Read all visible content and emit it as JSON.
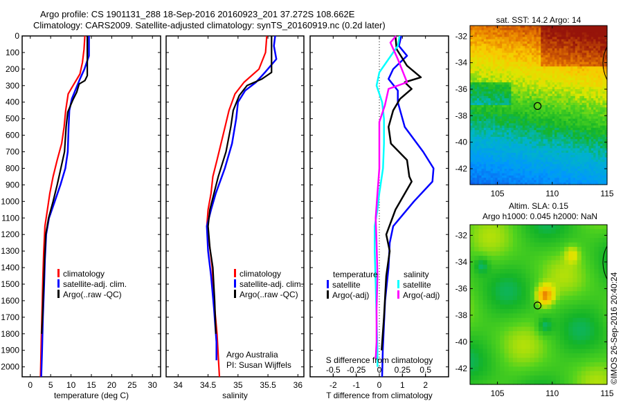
{
  "header": {
    "line1": "Argo profile: CS 1901131_288 18-Sep-2016 20160923_201 37.272S 108.662E",
    "line2": "Climatology: CARS2009. Satellite-adjusted climatology: synTS_20160919.nc (0.2d later)"
  },
  "credit": "©IMOS 26-Sep-2016 20:40:24",
  "colors": {
    "climatology": "#ff0000",
    "satellite": "#0000ff",
    "argo": "#000000",
    "sal_satellite": "#00ffff",
    "sal_argo": "#ff00ff"
  },
  "chart_data": [
    {
      "type": "line",
      "name": "temperature-profile",
      "xlabel": "temperature (deg C)",
      "ylabel": "",
      "xlim": [
        -2,
        32
      ],
      "ylim": [
        2060,
        0
      ],
      "xticks": [
        0,
        5,
        10,
        15,
        20,
        25,
        30
      ],
      "yticks": [
        0,
        100,
        200,
        300,
        400,
        500,
        600,
        700,
        800,
        900,
        1000,
        1100,
        1200,
        1300,
        1400,
        1500,
        1600,
        1700,
        1800,
        1900,
        2000
      ],
      "legend": [
        "climatology",
        "satellite-adj. clim.",
        "Argo(..raw -QC)"
      ],
      "series": [
        {
          "name": "climatology",
          "color": "#ff0000",
          "points": [
            [
              13.4,
              0
            ],
            [
              13.2,
              80
            ],
            [
              12.8,
              160
            ],
            [
              12.2,
              230
            ],
            [
              10.5,
              300
            ],
            [
              9.3,
              350
            ],
            [
              8.7,
              450
            ],
            [
              8.3,
              550
            ],
            [
              7.7,
              650
            ],
            [
              6.6,
              750
            ],
            [
              5.6,
              850
            ],
            [
              4.8,
              950
            ],
            [
              4.2,
              1050
            ],
            [
              3.6,
              1150
            ],
            [
              3.3,
              1300
            ],
            [
              3.1,
              1450
            ],
            [
              2.9,
              1650
            ],
            [
              2.7,
              1850
            ],
            [
              2.5,
              2060
            ]
          ]
        },
        {
          "name": "satellite-adj. clim.",
          "color": "#0000ff",
          "points": [
            [
              14.4,
              0
            ],
            [
              14.4,
              120
            ],
            [
              13.3,
              200
            ],
            [
              12.2,
              260
            ],
            [
              11.2,
              320
            ],
            [
              10.2,
              380
            ],
            [
              9.6,
              450
            ],
            [
              9.4,
              550
            ],
            [
              9.2,
              700
            ],
            [
              8.6,
              800
            ],
            [
              7.4,
              900
            ],
            [
              6.0,
              1000
            ],
            [
              4.6,
              1100
            ],
            [
              3.9,
              1200
            ],
            [
              3.6,
              1350
            ],
            [
              3.4,
              1500
            ],
            [
              3.1,
              1700
            ],
            [
              2.9,
              1900
            ],
            [
              2.7,
              2060
            ]
          ]
        },
        {
          "name": "Argo(..raw -QC)",
          "color": "#000000",
          "points": [
            [
              14.0,
              0
            ],
            [
              14.0,
              100
            ],
            [
              14.0,
              240
            ],
            [
              13.4,
              270
            ],
            [
              12.0,
              290
            ],
            [
              11.4,
              340
            ],
            [
              10.4,
              390
            ],
            [
              9.2,
              460
            ],
            [
              8.8,
              550
            ],
            [
              8.4,
              700
            ],
            [
              7.5,
              800
            ],
            [
              6.6,
              900
            ],
            [
              5.6,
              1000
            ],
            [
              4.5,
              1100
            ],
            [
              3.8,
              1200
            ],
            [
              3.5,
              1350
            ],
            [
              3.2,
              1550
            ],
            [
              3.0,
              1700
            ],
            [
              2.8,
              1800
            ]
          ]
        }
      ]
    },
    {
      "type": "line",
      "name": "salinity-profile",
      "xlabel": "salinity",
      "xlim": [
        33.8,
        36.1
      ],
      "ylim": [
        2060,
        0
      ],
      "xticks": [
        34,
        34.5,
        35,
        35.5,
        36
      ],
      "tick_labels": [
        "34",
        "34.5",
        "35",
        "35.5",
        "36"
      ],
      "legend": [
        "climatology",
        "satellite-adj. clim.",
        "Argo(..raw -QC)"
      ],
      "annotation": [
        "Argo Australia",
        "PI: Susan Wijffels"
      ],
      "series": [
        {
          "name": "climatology",
          "color": "#ff0000",
          "points": [
            [
              35.48,
              0
            ],
            [
              35.46,
              100
            ],
            [
              35.35,
              200
            ],
            [
              35.1,
              280
            ],
            [
              34.95,
              350
            ],
            [
              34.85,
              450
            ],
            [
              34.75,
              600
            ],
            [
              34.65,
              750
            ],
            [
              34.58,
              850
            ],
            [
              34.55,
              950
            ],
            [
              34.5,
              1050
            ],
            [
              34.48,
              1150
            ],
            [
              34.52,
              1250
            ],
            [
              34.57,
              1400
            ],
            [
              34.6,
              1600
            ],
            [
              34.65,
              1800
            ],
            [
              34.69,
              2060
            ]
          ]
        },
        {
          "name": "satellite-adj. clim.",
          "color": "#0000ff",
          "points": [
            [
              35.62,
              0
            ],
            [
              35.6,
              60
            ],
            [
              35.64,
              140
            ],
            [
              35.45,
              220
            ],
            [
              35.3,
              280
            ],
            [
              35.12,
              330
            ],
            [
              35.0,
              400
            ],
            [
              34.97,
              500
            ],
            [
              34.9,
              650
            ],
            [
              34.78,
              800
            ],
            [
              34.63,
              950
            ],
            [
              34.55,
              1050
            ],
            [
              34.48,
              1150
            ],
            [
              34.5,
              1300
            ],
            [
              34.55,
              1450
            ],
            [
              34.6,
              1650
            ],
            [
              34.64,
              1850
            ],
            [
              34.64,
              1960
            ]
          ]
        },
        {
          "name": "Argo(..raw -QC)",
          "color": "#000000",
          "points": [
            [
              35.56,
              0
            ],
            [
              35.56,
              220
            ],
            [
              35.4,
              260
            ],
            [
              35.15,
              300
            ],
            [
              35.02,
              360
            ],
            [
              34.92,
              450
            ],
            [
              34.88,
              550
            ],
            [
              34.8,
              700
            ],
            [
              34.67,
              850
            ],
            [
              34.6,
              950
            ],
            [
              34.53,
              1050
            ],
            [
              34.5,
              1150
            ],
            [
              34.53,
              1280
            ],
            [
              34.58,
              1400
            ],
            [
              34.61,
              1600
            ],
            [
              34.63,
              1800
            ]
          ]
        }
      ]
    },
    {
      "type": "line",
      "name": "difference-profile",
      "xlabel": "T difference from climatology",
      "xlabel2": "S difference from climatology",
      "xlim": [
        -3,
        3
      ],
      "xlim_S": [
        -0.75,
        0.75
      ],
      "ylim": [
        2060,
        0
      ],
      "xticks": [
        -2,
        -1,
        0,
        1,
        2
      ],
      "xticks_S": [
        -0.5,
        -0.25,
        0,
        0.25,
        0.5
      ],
      "tick_labels_S": [
        "-0.5",
        "-0.25",
        "0",
        "0.25",
        "0.5"
      ],
      "legend": {
        "temperature_header": "temperature",
        "salinity_header": "salinity",
        "items": [
          "satellite",
          "Argo(-adj)",
          "satellite",
          "Argo(-adj)"
        ]
      },
      "series": [
        {
          "name": "temperature satellite",
          "color": "#0000ff",
          "points": [
            [
              0.95,
              0
            ],
            [
              0.85,
              60
            ],
            [
              1.2,
              120
            ],
            [
              0.6,
              200
            ],
            [
              0.4,
              260
            ],
            [
              0.8,
              330
            ],
            [
              0.8,
              400
            ],
            [
              1.1,
              550
            ],
            [
              1.9,
              700
            ],
            [
              2.35,
              800
            ],
            [
              2.3,
              880
            ],
            [
              1.5,
              1000
            ],
            [
              0.6,
              1150
            ],
            [
              0.45,
              1250
            ],
            [
              0.4,
              1400
            ],
            [
              0.25,
              1600
            ],
            [
              0.15,
              1900
            ],
            [
              0.12,
              2060
            ]
          ]
        },
        {
          "name": "temperature Argo(-adj)",
          "color": "#000000",
          "points": [
            [
              0.7,
              0
            ],
            [
              0.75,
              80
            ],
            [
              1.2,
              180
            ],
            [
              1.8,
              250
            ],
            [
              1.1,
              280
            ],
            [
              1.4,
              320
            ],
            [
              0.9,
              380
            ],
            [
              0.6,
              450
            ],
            [
              0.4,
              550
            ],
            [
              0.5,
              650
            ],
            [
              1.2,
              750
            ],
            [
              1.3,
              850
            ],
            [
              1.4,
              880
            ],
            [
              0.7,
              1050
            ],
            [
              0.3,
              1200
            ],
            [
              0.45,
              1300
            ],
            [
              0.3,
              1450
            ],
            [
              0.2,
              1700
            ],
            [
              0.1,
              1900
            ]
          ]
        },
        {
          "name": "salinity satellite",
          "color": "#00ffff",
          "points": [
            [
              0.22,
              0
            ],
            [
              0.2,
              60
            ],
            [
              0.1,
              140
            ],
            [
              0.0,
              220
            ],
            [
              -0.03,
              300
            ],
            [
              0.03,
              400
            ],
            [
              0.05,
              500
            ],
            [
              0.05,
              650
            ],
            [
              0.04,
              800
            ],
            [
              0.0,
              950
            ],
            [
              -0.02,
              1050
            ],
            [
              -0.05,
              1150
            ],
            [
              -0.05,
              1300
            ],
            [
              -0.04,
              1500
            ],
            [
              -0.03,
              1700
            ],
            [
              -0.02,
              1900
            ],
            [
              -0.02,
              2000
            ]
          ]
        },
        {
          "name": "salinity Argo(-adj)",
          "color": "#ff00ff",
          "points": [
            [
              0.18,
              0
            ],
            [
              0.12,
              40
            ],
            [
              0.2,
              140
            ],
            [
              0.3,
              280
            ],
            [
              0.1,
              320
            ],
            [
              0.06,
              420
            ],
            [
              0.0,
              520
            ],
            [
              0.0,
              650
            ],
            [
              0.0,
              800
            ],
            [
              -0.02,
              950
            ],
            [
              -0.04,
              1100
            ],
            [
              -0.03,
              1250
            ],
            [
              -0.02,
              1450
            ],
            [
              -0.03,
              1650
            ],
            [
              -0.03,
              1850
            ],
            [
              -0.04,
              1950
            ]
          ]
        }
      ]
    },
    {
      "type": "heatmap",
      "name": "sst-map",
      "title": "sat. SST: 14.2 Argo: 14",
      "xlim": [
        102.5,
        115
      ],
      "ylim": [
        -43.2,
        -31.2
      ],
      "xticks": [
        105,
        110,
        115
      ],
      "yticks": [
        -32,
        -34,
        -36,
        -38,
        -40,
        -42
      ],
      "marker": {
        "lon": 108.662,
        "lat": -37.272
      },
      "values_description": "warm (red/orange) in north-east, yellow mid, green band near -36 to -38, blue south"
    },
    {
      "type": "heatmap",
      "name": "sla-map",
      "title_line1": "Altim. SLA: 0.15",
      "title_line2": "Argo h1000: 0.045 h2000: NaN",
      "xlim": [
        102.5,
        115
      ],
      "ylim": [
        -43.2,
        -31.2
      ],
      "xticks": [
        105,
        110,
        115
      ],
      "yticks": [
        -32,
        -34,
        -36,
        -38,
        -40,
        -42
      ],
      "marker": {
        "lon": 108.662,
        "lat": -37.272
      },
      "values_description": "mostly green with positive anomaly (orange) near 109E -36.3S, cyan lows scattered"
    }
  ]
}
